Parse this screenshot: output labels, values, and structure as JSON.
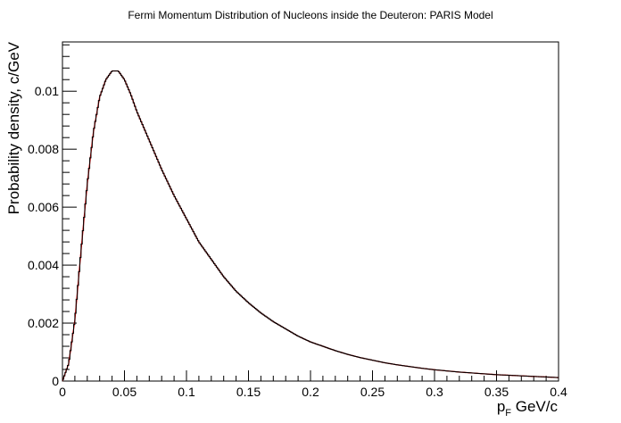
{
  "chart_data": {
    "type": "line",
    "title": "Fermi Momentum Distribution of Nucleons inside the Deuteron: PARIS Model",
    "xlabel_main": "p",
    "xlabel_sub": "F",
    "xlabel_unit": " GeV/c",
    "ylabel": "Probability density, c/GeV",
    "xlim": [
      0,
      0.4
    ],
    "ylim": [
      0,
      0.0117
    ],
    "xticks": [
      0,
      0.05,
      0.1,
      0.15,
      0.2,
      0.25,
      0.3,
      0.35,
      0.4
    ],
    "xtick_labels": [
      "0",
      "0.05",
      "0.1",
      "0.15",
      "0.2",
      "0.25",
      "0.3",
      "0.35",
      "0.4"
    ],
    "yticks": [
      0,
      0.002,
      0.004,
      0.006,
      0.008,
      0.01
    ],
    "ytick_labels": [
      "0",
      "0.002",
      "0.004",
      "0.006",
      "0.008",
      "0.01"
    ],
    "grid": false,
    "colors": {
      "histogram": "#000000",
      "fit": "#cc0000"
    },
    "series": [
      {
        "x": [
          0,
          0.005,
          0.01,
          0.015,
          0.02,
          0.025,
          0.03,
          0.035,
          0.04,
          0.043,
          0.045,
          0.05,
          0.055,
          0.06,
          0.07,
          0.08,
          0.09,
          0.1,
          0.11,
          0.12,
          0.13,
          0.14,
          0.15,
          0.16,
          0.17,
          0.18,
          0.19,
          0.2,
          0.21,
          0.22,
          0.23,
          0.24,
          0.25,
          0.26,
          0.27,
          0.28,
          0.29,
          0.3,
          0.31,
          0.32,
          0.33,
          0.34,
          0.35,
          0.36,
          0.37,
          0.38,
          0.39,
          0.4
        ],
        "y": [
          0,
          0.0006,
          0.0021,
          0.0045,
          0.0068,
          0.0086,
          0.0098,
          0.0104,
          0.0107,
          0.0107,
          0.0107,
          0.0104,
          0.0099,
          0.0093,
          0.0083,
          0.0073,
          0.0064,
          0.0056,
          0.0048,
          0.0042,
          0.0036,
          0.0031,
          0.0027,
          0.00235,
          0.00205,
          0.0018,
          0.00155,
          0.00135,
          0.0012,
          0.00105,
          0.00092,
          0.00081,
          0.00072,
          0.00063,
          0.00056,
          0.0005,
          0.00044,
          0.00039,
          0.00035,
          0.00031,
          0.00028,
          0.00025,
          0.00022,
          0.0002,
          0.00018,
          0.00016,
          0.00014,
          0.00012
        ]
      }
    ]
  }
}
